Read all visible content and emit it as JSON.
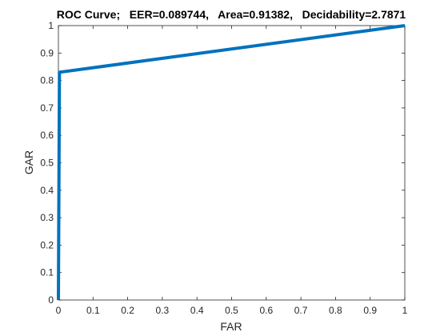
{
  "chart_data": {
    "type": "line",
    "title": "ROC Curve;   EER=0.089744,   Area=0.91382,   Decidability=2.7871",
    "xlabel": "FAR",
    "ylabel": "GAR",
    "xlim": [
      0,
      1
    ],
    "ylim": [
      0,
      1
    ],
    "x_ticks": [
      "0",
      "0.1",
      "0.2",
      "0.3",
      "0.4",
      "0.5",
      "0.6",
      "0.7",
      "0.8",
      "0.9",
      "1"
    ],
    "y_ticks": [
      "0",
      "0.1",
      "0.2",
      "0.3",
      "0.4",
      "0.5",
      "0.6",
      "0.7",
      "0.8",
      "0.9",
      "1"
    ],
    "grid": false,
    "series": [
      {
        "color": "#0072BD",
        "x": [
          0,
          0.003,
          1
        ],
        "y": [
          0,
          0.83,
          1
        ]
      }
    ]
  }
}
